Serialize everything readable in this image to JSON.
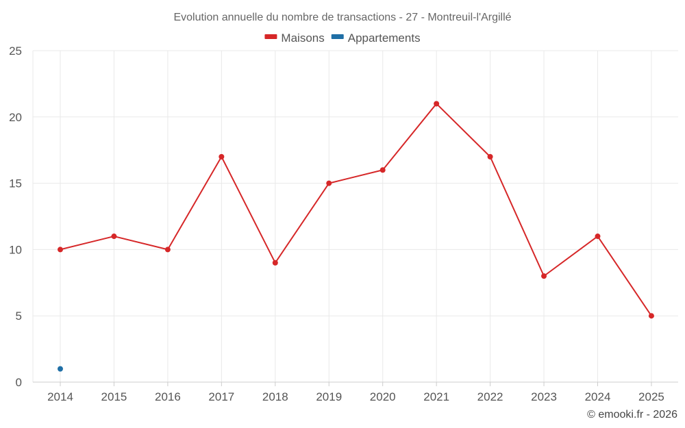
{
  "chart_data": {
    "type": "line",
    "title": "Evolution annuelle du nombre de transactions - 27 - Montreuil-l'Argillé",
    "xlabel": "",
    "ylabel": "",
    "categories": [
      "2014",
      "2015",
      "2016",
      "2017",
      "2018",
      "2019",
      "2020",
      "2021",
      "2022",
      "2023",
      "2024",
      "2025"
    ],
    "ylim": [
      0,
      25
    ],
    "yticks": [
      "0",
      "5",
      "10",
      "15",
      "20",
      "25"
    ],
    "grid": true,
    "legend_position": "top-center",
    "series": [
      {
        "name": "Maisons",
        "color": "#d62728",
        "values": [
          10,
          11,
          10,
          17,
          9,
          15,
          16,
          21,
          17,
          8,
          11,
          5
        ]
      },
      {
        "name": "Appartements",
        "color": "#1f6fa6",
        "values": [
          1,
          null,
          null,
          null,
          null,
          null,
          null,
          null,
          null,
          null,
          null,
          null
        ]
      }
    ]
  },
  "credit": "© emooki.fr - 2026"
}
